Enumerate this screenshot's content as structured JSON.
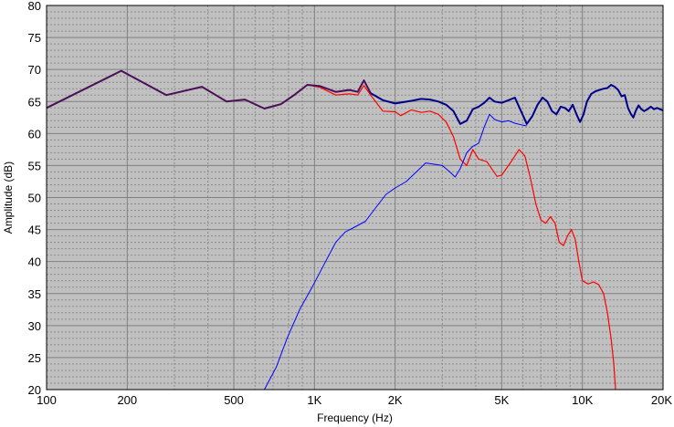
{
  "chart_data": {
    "type": "line",
    "xlabel": "Frequency (Hz)",
    "ylabel": "Amplitude (dB)",
    "x_scale": "log",
    "xlim": [
      100,
      20000
    ],
    "ylim": [
      20,
      80
    ],
    "grid": true,
    "legend": "none",
    "x_ticks": [
      {
        "value": 100,
        "label": "100"
      },
      {
        "value": 200,
        "label": "200"
      },
      {
        "value": 500,
        "label": "500"
      },
      {
        "value": 1000,
        "label": "1K"
      },
      {
        "value": 2000,
        "label": "2K"
      },
      {
        "value": 5000,
        "label": "5K"
      },
      {
        "value": 10000,
        "label": "10K"
      },
      {
        "value": 20000,
        "label": "20K"
      }
    ],
    "y_ticks": [
      {
        "value": 80,
        "label": "80"
      },
      {
        "value": 75,
        "label": "75"
      },
      {
        "value": 70,
        "label": "70"
      },
      {
        "value": 65,
        "label": "65"
      },
      {
        "value": 60,
        "label": "60"
      },
      {
        "value": 55,
        "label": "55"
      },
      {
        "value": 50,
        "label": "50"
      },
      {
        "value": 45,
        "label": "45"
      },
      {
        "value": 40,
        "label": "40"
      },
      {
        "value": 35,
        "label": "35"
      },
      {
        "value": 30,
        "label": "30"
      },
      {
        "value": 25,
        "label": "25"
      },
      {
        "value": 20,
        "label": "20"
      }
    ],
    "colors": {
      "plot_background": "#c0c0c0",
      "grid_major": "#808080",
      "grid_minor": "#8c8c8c",
      "frame": "#000000"
    },
    "series": [
      {
        "color": "#ff0000",
        "width": 1.2,
        "points": [
          [
            100,
            64
          ],
          [
            190,
            69.8
          ],
          [
            280,
            66
          ],
          [
            380,
            67.3
          ],
          [
            470,
            65
          ],
          [
            550,
            65.3
          ],
          [
            650,
            63.9
          ],
          [
            750,
            64.6
          ],
          [
            840,
            66
          ],
          [
            940,
            67.6
          ],
          [
            1050,
            67.2
          ],
          [
            1200,
            66
          ],
          [
            1350,
            66.2
          ],
          [
            1450,
            66
          ],
          [
            1530,
            67.5
          ],
          [
            1620,
            66
          ],
          [
            1800,
            63.5
          ],
          [
            2000,
            63.4
          ],
          [
            2100,
            62.8
          ],
          [
            2300,
            63.7
          ],
          [
            2500,
            63.3
          ],
          [
            2700,
            63.5
          ],
          [
            2900,
            63
          ],
          [
            3100,
            61.8
          ],
          [
            3300,
            59.5
          ],
          [
            3500,
            56
          ],
          [
            3700,
            55
          ],
          [
            3900,
            57.5
          ],
          [
            4100,
            56
          ],
          [
            4400,
            55.6
          ],
          [
            4800,
            53.3
          ],
          [
            5000,
            53.5
          ],
          [
            5400,
            55.5
          ],
          [
            5800,
            57.5
          ],
          [
            6100,
            56.5
          ],
          [
            6400,
            53
          ],
          [
            6700,
            49
          ],
          [
            7000,
            46.5
          ],
          [
            7300,
            46
          ],
          [
            7600,
            47
          ],
          [
            7900,
            46
          ],
          [
            8200,
            43
          ],
          [
            8500,
            42.5
          ],
          [
            8800,
            44
          ],
          [
            9100,
            45
          ],
          [
            9400,
            43.5
          ],
          [
            9700,
            40
          ],
          [
            10000,
            37
          ],
          [
            10500,
            36.5
          ],
          [
            11000,
            36.8
          ],
          [
            11500,
            36.4
          ],
          [
            12000,
            35
          ],
          [
            12400,
            32
          ],
          [
            12800,
            28
          ],
          [
            13100,
            24
          ],
          [
            13300,
            20
          ]
        ]
      },
      {
        "color": "#0000ff",
        "width": 1.0,
        "points": [
          [
            650,
            20
          ],
          [
            720,
            23.5
          ],
          [
            790,
            28
          ],
          [
            880,
            32.5
          ],
          [
            980,
            36
          ],
          [
            1100,
            40
          ],
          [
            1200,
            43
          ],
          [
            1300,
            44.6
          ],
          [
            1400,
            45.3
          ],
          [
            1550,
            46.3
          ],
          [
            1700,
            48.5
          ],
          [
            1850,
            50.5
          ],
          [
            2000,
            51.5
          ],
          [
            2200,
            52.5
          ],
          [
            2400,
            54
          ],
          [
            2600,
            55.4
          ],
          [
            2800,
            55.2
          ],
          [
            3000,
            55
          ],
          [
            3200,
            54
          ],
          [
            3350,
            53.2
          ],
          [
            3500,
            54.5
          ],
          [
            3700,
            57
          ],
          [
            3900,
            58
          ],
          [
            4100,
            58.5
          ],
          [
            4300,
            61
          ],
          [
            4500,
            63
          ],
          [
            4700,
            62.2
          ],
          [
            5000,
            61.8
          ],
          [
            5300,
            62
          ],
          [
            5600,
            61.6
          ],
          [
            6000,
            61.3
          ],
          [
            6200,
            61.2
          ]
        ]
      },
      {
        "color": "#4b0f5a",
        "width": 2.0,
        "points": [
          [
            100,
            64
          ],
          [
            190,
            69.8
          ],
          [
            280,
            66
          ],
          [
            380,
            67.3
          ],
          [
            470,
            65
          ],
          [
            550,
            65.3
          ],
          [
            650,
            63.9
          ],
          [
            750,
            64.6
          ],
          [
            840,
            66
          ],
          [
            940,
            67.6
          ],
          [
            1050,
            67.4
          ],
          [
            1200,
            66.5
          ],
          [
            1350,
            66.8
          ],
          [
            1450,
            66.5
          ],
          [
            1530,
            68.3
          ],
          [
            1620,
            66.3
          ]
        ]
      },
      {
        "color": "#00008b",
        "width": 2.0,
        "points": [
          [
            1620,
            66.3
          ],
          [
            1800,
            65.2
          ],
          [
            2000,
            64.7
          ],
          [
            2300,
            65.1
          ],
          [
            2500,
            65.4
          ],
          [
            2700,
            65.3
          ],
          [
            2900,
            65
          ],
          [
            3100,
            64.5
          ],
          [
            3300,
            63.5
          ],
          [
            3500,
            61.5
          ],
          [
            3700,
            62
          ],
          [
            3900,
            63.8
          ],
          [
            4100,
            64.2
          ],
          [
            4300,
            64.8
          ],
          [
            4500,
            65.6
          ],
          [
            4700,
            65
          ],
          [
            5000,
            64.8
          ],
          [
            5300,
            65.2
          ],
          [
            5600,
            65.6
          ],
          [
            5900,
            63.5
          ],
          [
            6200,
            61.5
          ],
          [
            6500,
            62.7
          ],
          [
            6800,
            64.5
          ],
          [
            7100,
            65.6
          ],
          [
            7400,
            65
          ],
          [
            7700,
            63.5
          ],
          [
            8000,
            63
          ],
          [
            8300,
            64.2
          ],
          [
            8600,
            64
          ],
          [
            8900,
            63.5
          ],
          [
            9200,
            64.5
          ],
          [
            9500,
            63
          ],
          [
            9800,
            61.8
          ],
          [
            10100,
            63
          ],
          [
            10400,
            65
          ],
          [
            10800,
            66.2
          ],
          [
            11200,
            66.6
          ],
          [
            11600,
            66.8
          ],
          [
            12000,
            67
          ],
          [
            12400,
            67.1
          ],
          [
            12800,
            67.6
          ],
          [
            13200,
            67.3
          ],
          [
            13600,
            66.8
          ],
          [
            14000,
            65.8
          ],
          [
            14400,
            66
          ],
          [
            14800,
            64
          ],
          [
            15200,
            63
          ],
          [
            15500,
            62.5
          ],
          [
            15800,
            63.5
          ],
          [
            16200,
            64.4
          ],
          [
            16600,
            63.8
          ],
          [
            17000,
            63.5
          ],
          [
            17500,
            63.8
          ],
          [
            18000,
            64.2
          ],
          [
            18500,
            63.8
          ],
          [
            19000,
            64
          ],
          [
            20000,
            63.6
          ]
        ]
      }
    ]
  }
}
